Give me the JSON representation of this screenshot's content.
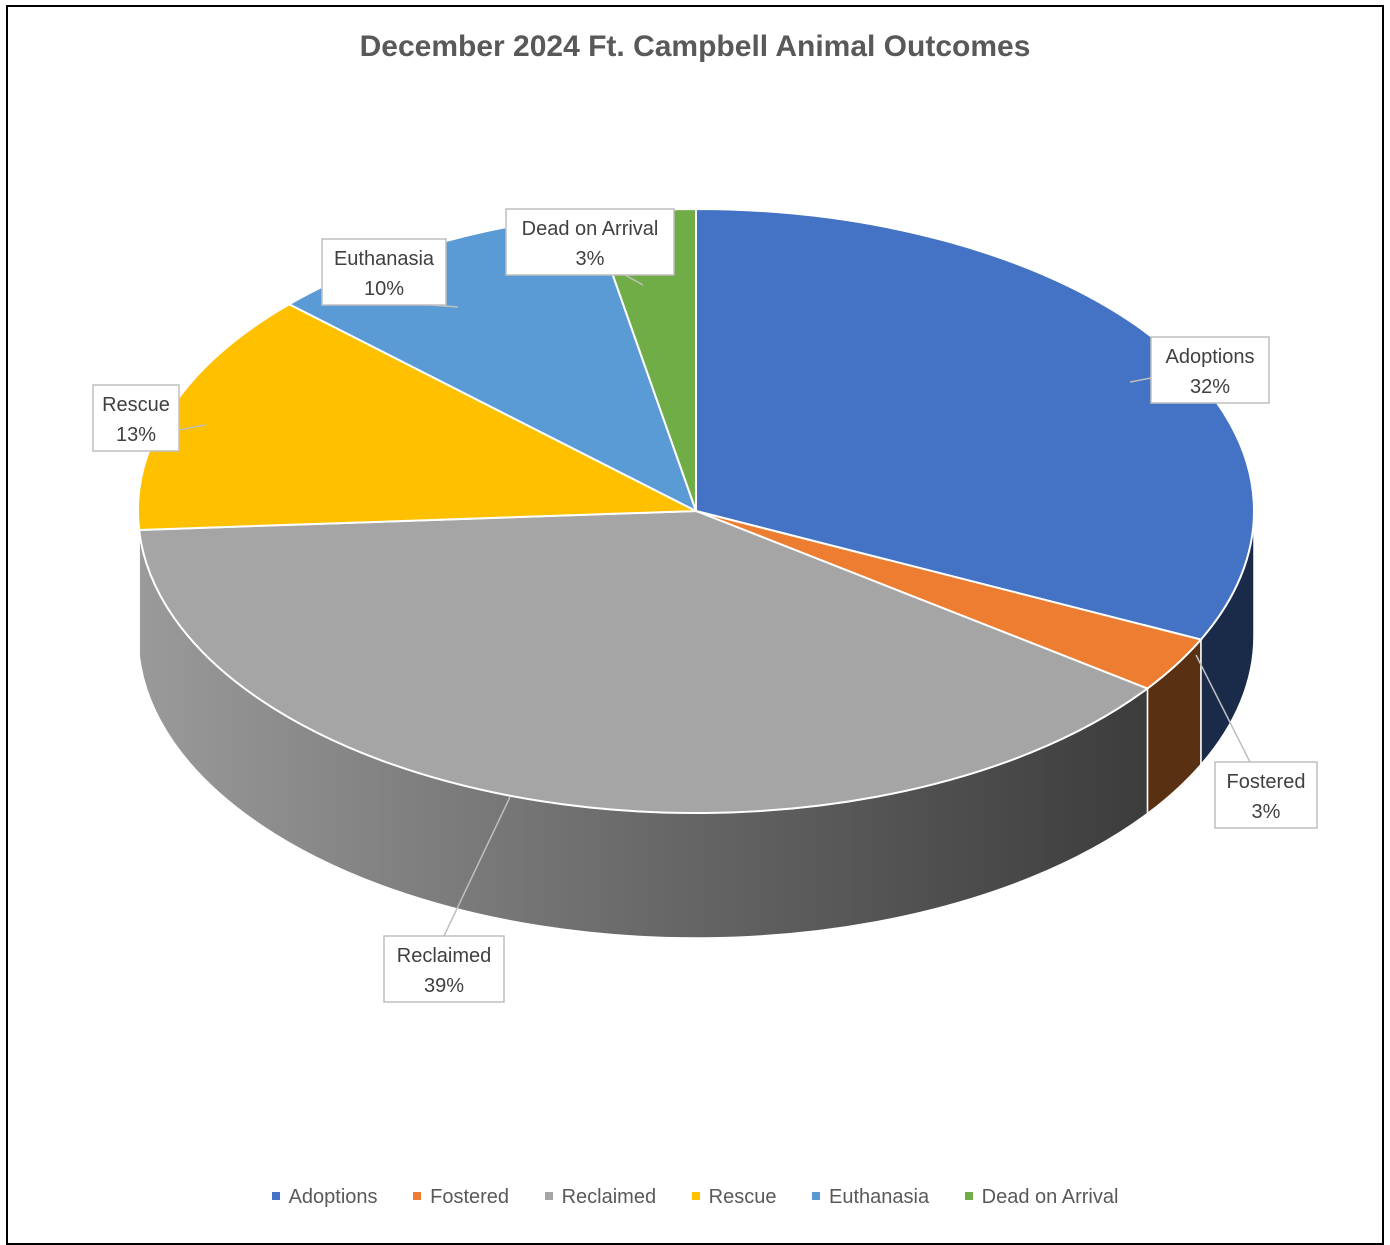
{
  "chart_data": {
    "type": "pie",
    "title": "December 2024 Ft. Campbell Animal Outcomes",
    "categories": [
      "Adoptions",
      "Fostered",
      "Reclaimed",
      "Rescue",
      "Euthanasia",
      "Dead on Arrival"
    ],
    "values": [
      32,
      3,
      39,
      13,
      10,
      3
    ],
    "labels": [
      "32%",
      "3%",
      "39%",
      "13%",
      "10%",
      "3%"
    ],
    "colors": [
      "#4472C4",
      "#ED7D31",
      "#A5A5A5",
      "#FFC000",
      "#5B9BD5",
      "#70AD47"
    ],
    "legend_position": "bottom",
    "style": "3d"
  }
}
